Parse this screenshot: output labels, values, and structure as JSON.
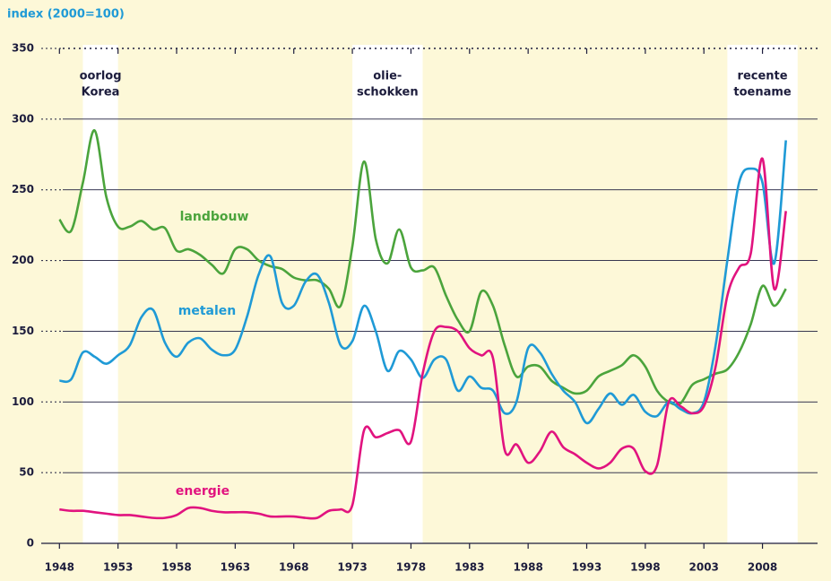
{
  "chart_data": {
    "type": "line",
    "y_axis_label": "index  (2000=100)",
    "x": [
      1948,
      1949,
      1950,
      1951,
      1952,
      1953,
      1954,
      1955,
      1956,
      1957,
      1958,
      1959,
      1960,
      1961,
      1962,
      1963,
      1964,
      1965,
      1966,
      1967,
      1968,
      1969,
      1970,
      1971,
      1972,
      1973,
      1974,
      1975,
      1976,
      1977,
      1978,
      1979,
      1980,
      1981,
      1982,
      1983,
      1984,
      1985,
      1986,
      1987,
      1988,
      1989,
      1990,
      1991,
      1992,
      1993,
      1994,
      1995,
      1996,
      1997,
      1998,
      1999,
      2000,
      2001,
      2002,
      2003,
      2004,
      2005,
      2006,
      2007,
      2008,
      2009,
      2010
    ],
    "series": [
      {
        "name": "landbouw",
        "color": "#4ba43c",
        "values": [
          229,
          221,
          255,
          292,
          245,
          224,
          224,
          228,
          222,
          223,
          207,
          208,
          204,
          197,
          191,
          208,
          208,
          200,
          196,
          194,
          188,
          186,
          186,
          180,
          168,
          210,
          270,
          215,
          198,
          222,
          195,
          193,
          195,
          175,
          158,
          150,
          178,
          168,
          140,
          118,
          125,
          125,
          115,
          110,
          106,
          108,
          118,
          122,
          126,
          133,
          125,
          108,
          100,
          99,
          112,
          116,
          120,
          123,
          135,
          155,
          182,
          168,
          180
        ]
      },
      {
        "name": "metalen",
        "color": "#1f9ad6",
        "values": [
          115,
          116,
          135,
          132,
          127,
          133,
          140,
          160,
          165,
          142,
          132,
          142,
          145,
          137,
          133,
          137,
          160,
          190,
          203,
          170,
          168,
          185,
          190,
          170,
          140,
          143,
          168,
          150,
          122,
          136,
          130,
          117,
          130,
          130,
          108,
          118,
          110,
          108,
          92,
          100,
          138,
          135,
          120,
          108,
          100,
          85,
          95,
          106,
          98,
          105,
          93,
          90,
          100,
          95,
          92,
          100,
          140,
          200,
          255,
          265,
          255,
          198,
          285
        ]
      },
      {
        "name": "energie",
        "color": "#e1137f",
        "values": [
          24,
          23,
          23,
          22,
          21,
          20,
          20,
          19,
          18,
          18,
          20,
          25,
          25,
          23,
          22,
          22,
          22,
          21,
          19,
          19,
          19,
          18,
          18,
          23,
          24,
          27,
          80,
          75,
          78,
          80,
          72,
          120,
          150,
          153,
          150,
          138,
          133,
          131,
          66,
          70,
          57,
          65,
          79,
          68,
          63,
          57,
          53,
          57,
          67,
          67,
          51,
          55,
          100,
          97,
          92,
          97,
          125,
          175,
          195,
          205,
          272,
          180,
          235
        ]
      }
    ],
    "bands": [
      {
        "from": 1950,
        "to": 1953,
        "label": [
          "oorlog",
          "Korea"
        ]
      },
      {
        "from": 1973,
        "to": 1979,
        "label": [
          "olie-",
          "schokken"
        ]
      },
      {
        "from": 2005,
        "to": 2011,
        "label": [
          "recente",
          "toename"
        ]
      }
    ],
    "xlim": [
      1946.6,
      2012.7
    ],
    "xticks": [
      1948,
      1953,
      1958,
      1963,
      1968,
      1973,
      1978,
      1983,
      1988,
      1993,
      1998,
      2003,
      2008
    ],
    "ylim": [
      0,
      350
    ],
    "yticks": [
      0,
      50,
      100,
      150,
      200,
      250,
      300,
      350
    ],
    "grid": true
  }
}
